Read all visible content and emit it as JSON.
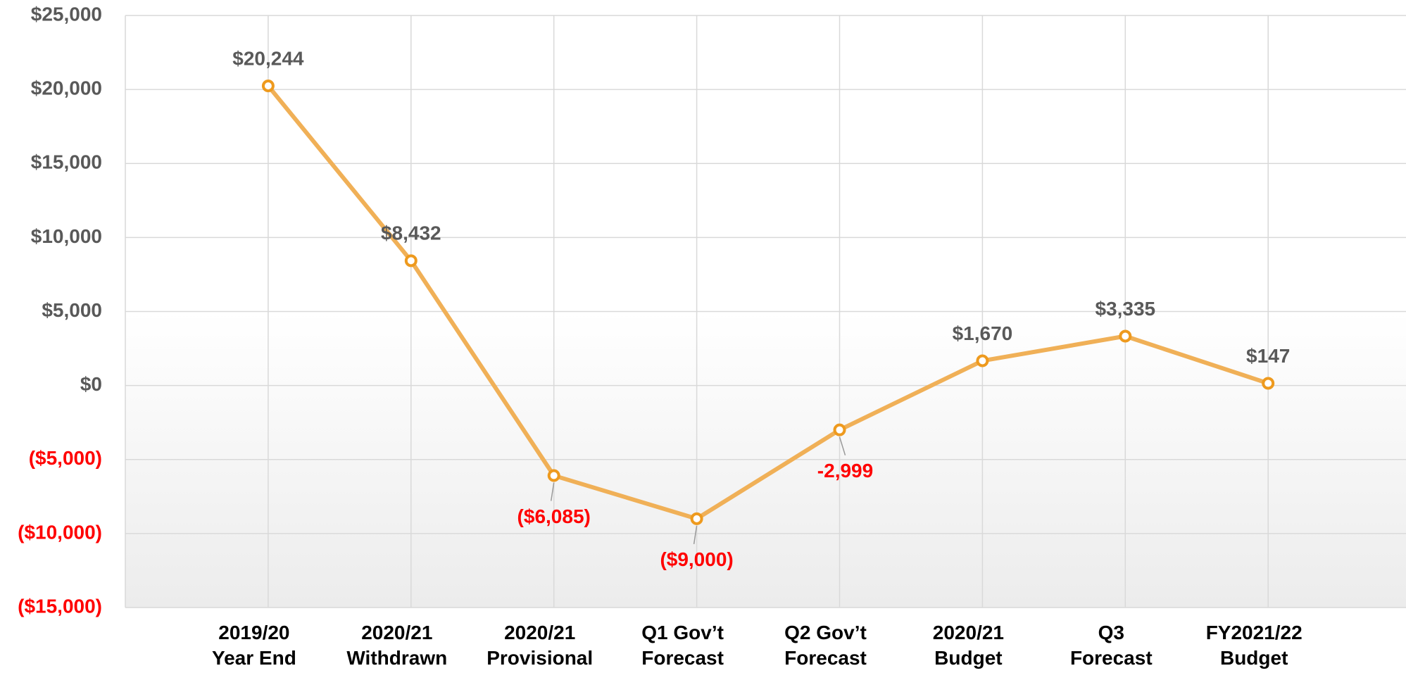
{
  "chart_data": {
    "type": "line",
    "categories": [
      "2019/20\nYear End",
      "2020/21\nWithdrawn",
      "2020/21\nProvisional",
      "Q1 Gov’t\nForecast",
      "Q2 Gov’t\nForecast",
      "2020/21\nBudget",
      "Q3\nForecast",
      "FY2021/22\nBudget"
    ],
    "series": [
      {
        "color": "#f0b057",
        "marker_color": "#ee9a1e",
        "values": [
          20244,
          8432,
          -6085,
          -9000,
          -2999,
          1670,
          3335,
          147
        ],
        "value_labels": [
          "$20,244",
          "$8,432",
          "($6,085)",
          "($9,000)",
          "-2,999",
          "$1,670",
          "$3,335",
          "$147"
        ]
      }
    ],
    "ylim": [
      -15000,
      25000
    ],
    "yticks": [
      {
        "value": -15000,
        "label": "($15,000)"
      },
      {
        "value": -10000,
        "label": "($10,000)"
      },
      {
        "value": -5000,
        "label": "($5,000)"
      },
      {
        "value": 0,
        "label": "$0"
      },
      {
        "value": 5000,
        "label": "$5,000"
      },
      {
        "value": 10000,
        "label": "$10,000"
      },
      {
        "value": 15000,
        "label": "$15,000"
      },
      {
        "value": 20000,
        "label": "$20,000"
      },
      {
        "value": 25000,
        "label": "$25,000"
      }
    ],
    "grid": true,
    "label_color": "#595959",
    "negative_label_color": "#ff0000"
  }
}
